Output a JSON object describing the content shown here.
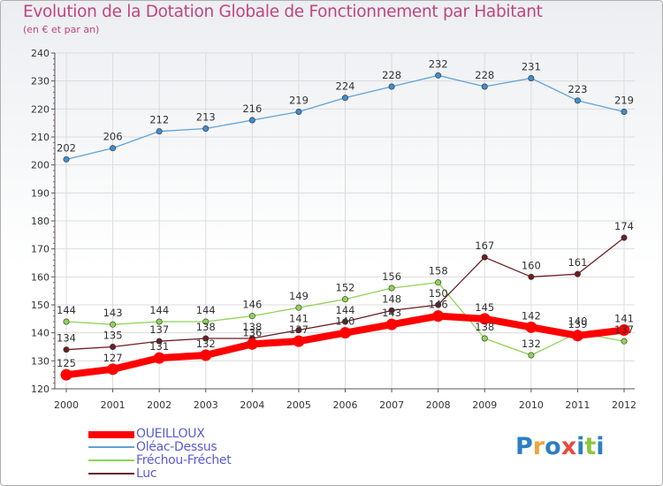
{
  "title": "Evolution de la Dotation Globale de Fonctionnement par Habitant",
  "subtitle": "(en € et par an)",
  "logo": {
    "letters": [
      "P",
      "r",
      "o",
      "x",
      "i",
      "t",
      "i"
    ],
    "colors": [
      "#2c7fc3",
      "#f2a33a",
      "#2c7fc3",
      "#e84c3d",
      "#2c7fc3",
      "#8cc63f",
      "#2c7fc3"
    ]
  },
  "colors": {
    "title": "#c0457f",
    "axis": "#555555",
    "grid": "#dddddd"
  },
  "chart_data": {
    "type": "line",
    "x": [
      "2000",
      "2001",
      "2002",
      "2003",
      "2004",
      "2005",
      "2006",
      "2007",
      "2008",
      "2009",
      "2010",
      "2011",
      "2012"
    ],
    "ylim": [
      120,
      240
    ],
    "yticks": [
      120,
      130,
      140,
      150,
      160,
      170,
      180,
      190,
      200,
      210,
      220,
      230,
      240
    ],
    "grid": true,
    "legend": "bottom-left",
    "series": [
      {
        "name": "OUEILLOUX",
        "color": "#ff0000",
        "values": [
          125,
          127,
          131,
          132,
          136,
          137,
          140,
          143,
          146,
          145,
          142,
          139,
          141
        ]
      },
      {
        "name": "Oléac-Dessus",
        "color": "#5ea3d8",
        "values": [
          202,
          206,
          212,
          213,
          216,
          219,
          224,
          228,
          232,
          228,
          231,
          223,
          219
        ]
      },
      {
        "name": "Fréchou-Fréchet",
        "color": "#8ed455",
        "values": [
          144,
          143,
          144,
          144,
          146,
          149,
          152,
          156,
          158,
          138,
          132,
          140,
          137
        ]
      },
      {
        "name": "Luc",
        "color": "#6b1e22",
        "values": [
          134,
          135,
          137,
          138,
          138,
          141,
          144,
          148,
          150,
          167,
          160,
          161,
          174
        ]
      }
    ]
  }
}
